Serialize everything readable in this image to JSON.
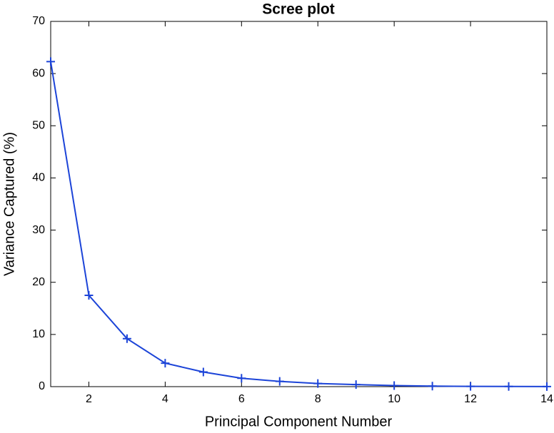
{
  "chart_data": {
    "type": "line",
    "title": "Scree plot",
    "x_label": "Principal Component Number",
    "y_label": "Variance Captured (%)",
    "x": [
      1,
      2,
      3,
      4,
      5,
      6,
      7,
      8,
      9,
      10,
      11,
      12,
      13,
      14
    ],
    "values": [
      62.3,
      17.5,
      9.2,
      4.5,
      2.8,
      1.6,
      1.0,
      0.6,
      0.4,
      0.2,
      0.1,
      0.05,
      0.03,
      0.02
    ],
    "color": "#1c44d8",
    "marker": "+",
    "xlim": [
      1,
      14
    ],
    "xticks": [
      2,
      4,
      6,
      8,
      10,
      12,
      14
    ],
    "ylim": [
      0,
      70
    ],
    "yticks": [
      0,
      10,
      20,
      30,
      40,
      50,
      60,
      70
    ],
    "grid": false
  }
}
